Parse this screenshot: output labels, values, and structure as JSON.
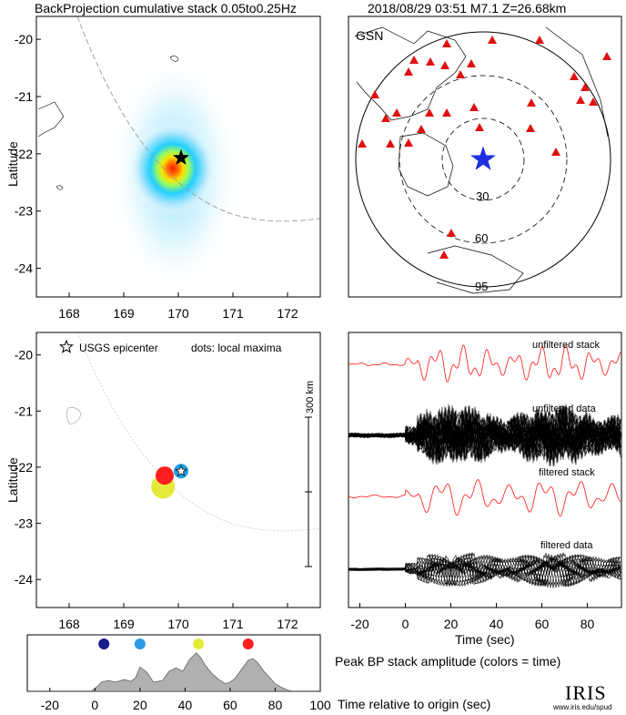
{
  "header": {
    "left_title": "BackProjection cumulative stack 0.05to0.25Hz",
    "right_title": "2018/08/29 03:51   M7.1   Z=26.68km"
  },
  "colors": {
    "axis": "#000000",
    "stack_trace": "#ff2a2a",
    "data_trace": "#000000",
    "station": "#e01010",
    "epicenter_star": "#1f2fe0",
    "peak_fill": "#b0b0b0",
    "usgs_blue": "#1aa0e8",
    "dot_red": "#ff1f1f",
    "dot_yellow": "#e4ea3a",
    "dot_darkblue": "#1a1a8a",
    "dot_lightblue": "#2a9ae8"
  },
  "chart_data": [
    {
      "id": "bp_cumulative",
      "type": "heatmap",
      "title": "BackProjection cumulative stack 0.05to0.25Hz",
      "ylabel": "Latitude",
      "xlabel": "",
      "xlim": [
        167.4,
        172.6
      ],
      "ylim": [
        -24.5,
        -19.6
      ],
      "xticks": [
        "168",
        "169",
        "170",
        "171",
        "172"
      ],
      "yticks": [
        "-20",
        "-21",
        "-22",
        "-23",
        "-24"
      ],
      "peak": {
        "lon": 169.78,
        "lat": -22.15
      },
      "epicenter": {
        "lon": 170.05,
        "lat": -22.07
      }
    },
    {
      "id": "gsn_map",
      "type": "scatter",
      "title": "GSN",
      "rings_deg": [
        "30",
        "60",
        "95"
      ],
      "icon": "blue-star-icon"
    },
    {
      "id": "local_maxima",
      "type": "scatter",
      "legend_epicenter": "USGS epicenter",
      "legend_dots": "dots: local maxima",
      "scale_label": "300 km",
      "ylabel": "Latitude",
      "xlim": [
        167.4,
        172.6
      ],
      "ylim": [
        -24.5,
        -19.6
      ],
      "xticks": [
        "168",
        "169",
        "170",
        "171",
        "172"
      ],
      "yticks": [
        "-20",
        "-21",
        "-22",
        "-23",
        "-24"
      ],
      "epicenter": {
        "lon": 170.05,
        "lat": -22.07
      },
      "maxima": [
        {
          "lon": 169.72,
          "lat": -22.35,
          "color": "yellow"
        },
        {
          "lon": 169.75,
          "lat": -22.15,
          "color": "red"
        }
      ]
    },
    {
      "id": "traces",
      "type": "line",
      "xlabel": "Time (sec)",
      "xlim": [
        -25,
        95
      ],
      "xticks": [
        "-20",
        "0",
        "20",
        "40",
        "60",
        "80"
      ],
      "trace_labels": [
        "unfiltered stack",
        "unfiltered data",
        "filtered stack",
        "filtered data"
      ]
    },
    {
      "id": "peak_amplitude",
      "type": "area",
      "title": "Peak BP stack amplitude (colors = time)",
      "xlabel": "Time relative to origin (sec)",
      "xlim": [
        -30,
        100
      ],
      "xticks": [
        "-20",
        "0",
        "20",
        "40",
        "60",
        "80",
        "100"
      ],
      "x": [
        -30,
        -2,
        0,
        3,
        6,
        9,
        13,
        16,
        18,
        20,
        23,
        26,
        30,
        33,
        36,
        39,
        42,
        45,
        47,
        49,
        52,
        55,
        58,
        60,
        62,
        65,
        68,
        70,
        72,
        75,
        78,
        80,
        82,
        84,
        86,
        88,
        90,
        100
      ],
      "y": [
        0.0,
        0.0,
        0.06,
        0.22,
        0.26,
        0.22,
        0.28,
        0.24,
        0.32,
        0.58,
        0.46,
        0.22,
        0.26,
        0.48,
        0.56,
        0.48,
        0.76,
        0.92,
        0.8,
        0.62,
        0.42,
        0.28,
        0.18,
        0.22,
        0.3,
        0.52,
        0.74,
        0.78,
        0.7,
        0.48,
        0.3,
        0.18,
        0.12,
        0.06,
        0.02,
        0.0,
        0.0,
        0.0
      ],
      "ylim": [
        0,
        1.0
      ],
      "time_dots": [
        {
          "t": 4,
          "color": "darkblue"
        },
        {
          "t": 20,
          "color": "lightblue"
        },
        {
          "t": 46,
          "color": "yellow"
        },
        {
          "t": 68,
          "color": "red"
        }
      ]
    }
  ],
  "footer": {
    "logo_text": "IRIS",
    "logo_url": "www.iris.edu/spud"
  }
}
